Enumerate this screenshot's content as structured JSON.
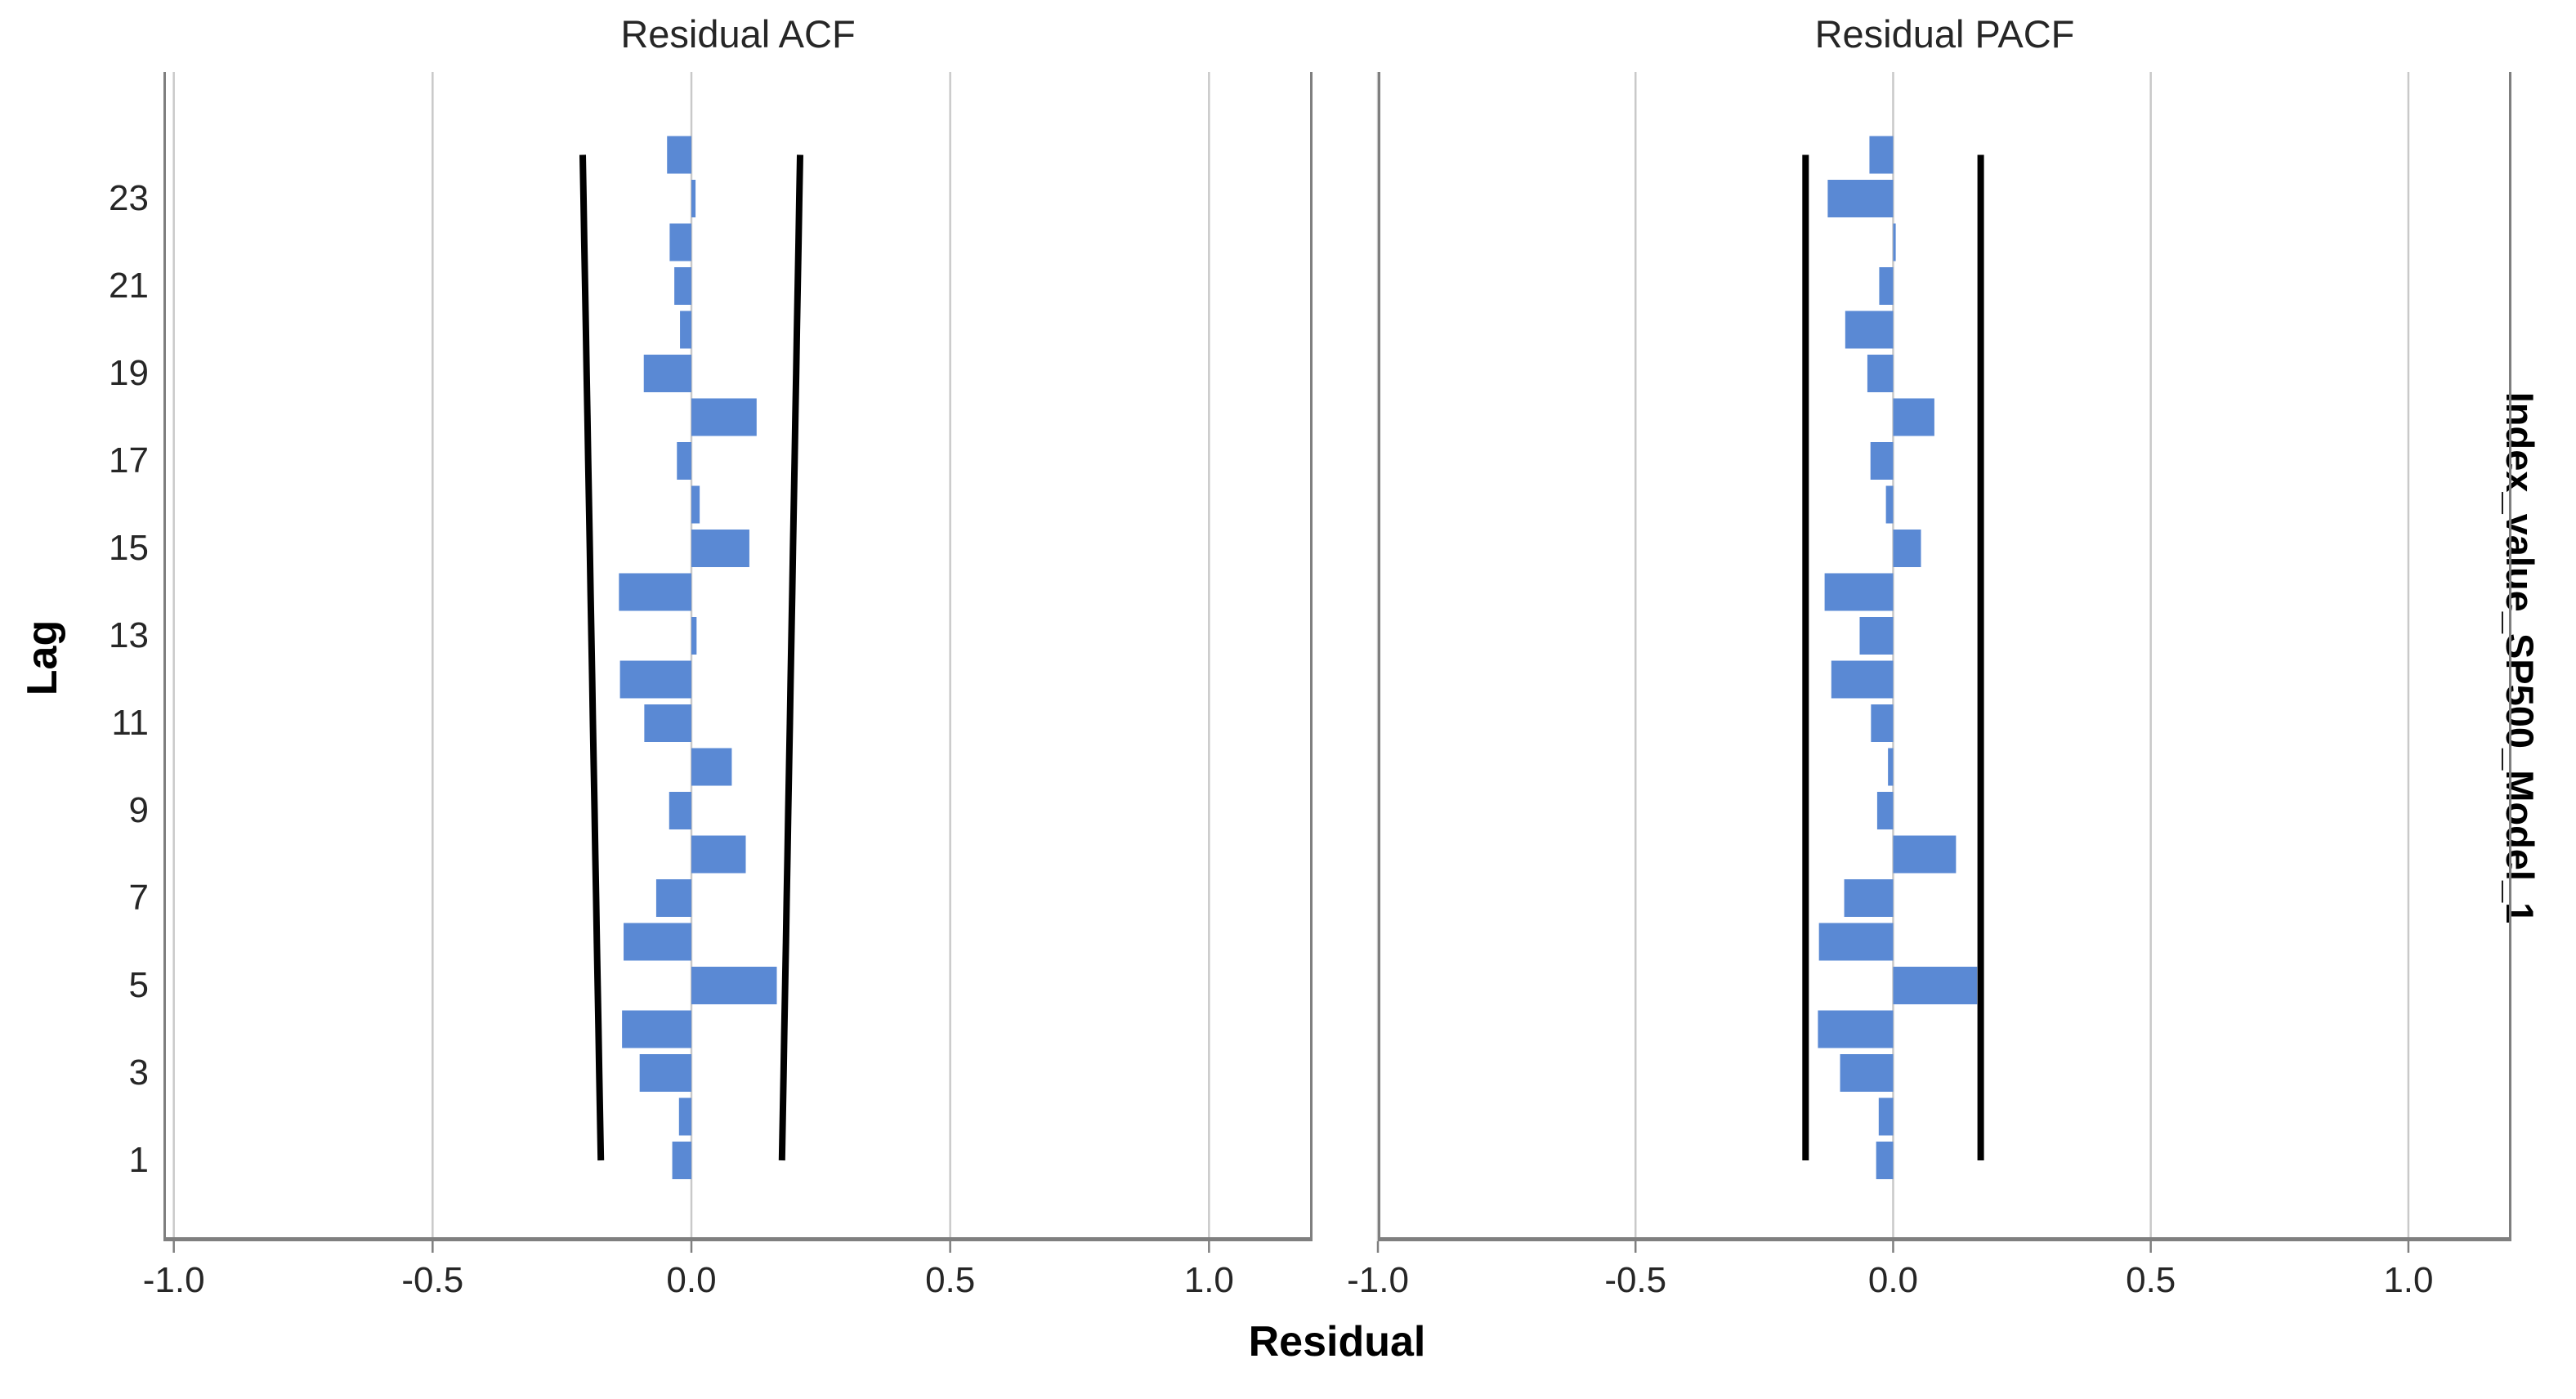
{
  "figure": {
    "x_axis_title": "Residual",
    "y_axis_title": "Lag",
    "right_side_title": "Index_value_SP500_Model_1",
    "x_tick_labels": [
      "-1.0",
      "-0.5",
      "0.0",
      "0.5",
      "1.0"
    ],
    "y_tick_labels": [
      "1",
      "3",
      "5",
      "7",
      "9",
      "11",
      "13",
      "15",
      "17",
      "19",
      "21",
      "23"
    ]
  },
  "style": {
    "bar_color": "#5a89d4",
    "confidence_line_color": "#000000",
    "grid_color": "#c9c9c9",
    "frame_color": "#7f7f7f",
    "text_color": "#262626"
  },
  "chart_data": [
    {
      "type": "bar",
      "orientation": "horizontal",
      "title": "Residual ACF",
      "xlabel": "Residual",
      "ylabel": "Lag",
      "xlim": [
        -1.02,
        1.2
      ],
      "xticks": [
        -1.0,
        -0.5,
        0.0,
        0.5,
        1.0
      ],
      "grid": true,
      "lags": [
        1,
        2,
        3,
        4,
        5,
        6,
        7,
        8,
        9,
        10,
        11,
        12,
        13,
        14,
        15,
        16,
        17,
        18,
        19,
        20,
        21,
        22,
        23,
        24
      ],
      "values": [
        -0.037,
        -0.024,
        -0.1,
        -0.134,
        0.165,
        -0.131,
        -0.068,
        0.105,
        -0.043,
        0.078,
        -0.091,
        -0.138,
        0.01,
        -0.14,
        0.112,
        0.016,
        -0.028,
        0.126,
        -0.092,
        -0.022,
        -0.033,
        -0.042,
        0.008,
        -0.047
      ],
      "confidence_limits": {
        "shape": "curved",
        "lag1": 0.175,
        "lag24": 0.21
      }
    },
    {
      "type": "bar",
      "orientation": "horizontal",
      "title": "Residual PACF",
      "xlabel": "Residual",
      "ylabel": "Lag",
      "xlim": [
        -1.0,
        1.2
      ],
      "xticks": [
        -1.0,
        -0.5,
        0.0,
        0.5,
        1.0
      ],
      "grid": true,
      "lags": [
        1,
        2,
        3,
        4,
        5,
        6,
        7,
        8,
        9,
        10,
        11,
        12,
        13,
        14,
        15,
        16,
        17,
        18,
        19,
        20,
        21,
        22,
        23,
        24
      ],
      "values": [
        -0.033,
        -0.028,
        -0.103,
        -0.146,
        0.163,
        -0.144,
        -0.095,
        0.122,
        -0.031,
        -0.01,
        -0.043,
        -0.12,
        -0.065,
        -0.133,
        0.054,
        -0.014,
        -0.044,
        0.08,
        -0.05,
        -0.093,
        -0.027,
        0.005,
        -0.127,
        -0.046
      ],
      "confidence_limits": {
        "shape": "straight",
        "lag1": 0.17,
        "lag24": 0.17
      }
    }
  ]
}
